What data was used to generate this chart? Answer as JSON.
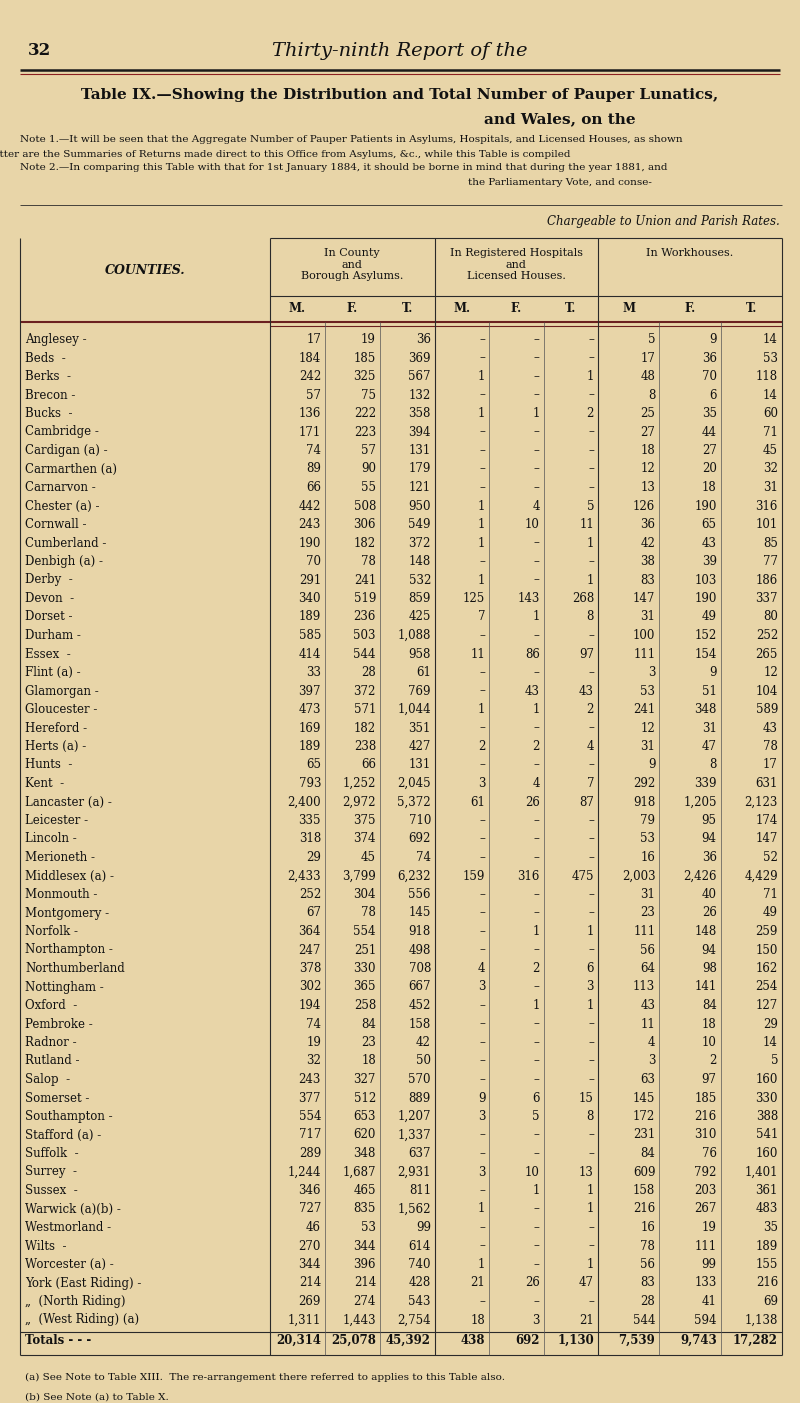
{
  "page_num": "32",
  "page_header": "Thirty-ninth Report of the",
  "title_line1": "Table IX.—Showing the Distribution and Total Number of Pauper Lunatics,",
  "title_line2": "and Wales, on the",
  "note1_line1": "Note 1.—It will be seen that the Aggregate Number of Pauper Patients in Asylums, Hospitals, and Licensed Houses, as shown",
  "note1_line2": "latter are the Summaries of Returns made direct to this Office from Asylums, &c., while this Table is compiled",
  "note2_line1": "Note 2.—In comparing this Table with that for 1st January 1884, it should be borne in mind that during the year 1881, and",
  "note2_line2": "the Parliamentary Vote, and conse-",
  "chargeable_header": "Chargeable to Union and Parish Rates.",
  "col_group1": "In County\nand\nBorough Asylums.",
  "col_group2": "In Registered Hospitals\nand\nLicensed Houses.",
  "col_group3": "In Workhouses.",
  "sub_headers": [
    "M.",
    "F.",
    "T.",
    "M.",
    "F.",
    "T.",
    "M",
    "F.",
    "T."
  ],
  "counties_header": "COUNTIES.",
  "rows": [
    [
      "Anglesey -",
      17,
      19,
      36,
      "-",
      "-",
      "-",
      5,
      9,
      14
    ],
    [
      "Beds  -",
      184,
      185,
      369,
      "-",
      "-",
      "-",
      17,
      36,
      53
    ],
    [
      "Berks  -",
      242,
      325,
      567,
      1,
      "-",
      1,
      48,
      70,
      118
    ],
    [
      "Brecon -",
      57,
      75,
      132,
      "-",
      "-",
      "-",
      8,
      6,
      14
    ],
    [
      "Bucks  -",
      136,
      222,
      358,
      1,
      1,
      2,
      25,
      35,
      60
    ],
    [
      "Cambridge -",
      171,
      223,
      394,
      "-",
      "-",
      "-",
      27,
      44,
      71
    ],
    [
      "Cardigan (a) -",
      74,
      57,
      131,
      "-",
      "-",
      "-",
      18,
      27,
      45
    ],
    [
      "Carmarthen (a)",
      89,
      90,
      179,
      "-",
      "-",
      "-",
      12,
      20,
      32
    ],
    [
      "Carnarvon -",
      66,
      55,
      121,
      "-",
      "-",
      "-",
      13,
      18,
      31
    ],
    [
      "Chester (a) -",
      442,
      508,
      950,
      1,
      4,
      5,
      126,
      190,
      316
    ],
    [
      "Cornwall -",
      243,
      306,
      549,
      1,
      10,
      11,
      36,
      65,
      101
    ],
    [
      "Cumberland -",
      190,
      182,
      372,
      1,
      "-",
      1,
      42,
      43,
      85
    ],
    [
      "Denbigh (a) -",
      70,
      78,
      148,
      "-",
      "-",
      "-",
      38,
      39,
      77
    ],
    [
      "Derby  -",
      291,
      241,
      532,
      1,
      "-",
      1,
      83,
      103,
      186
    ],
    [
      "Devon  -",
      340,
      519,
      859,
      125,
      143,
      268,
      147,
      190,
      337
    ],
    [
      "Dorset -",
      189,
      236,
      425,
      7,
      1,
      8,
      31,
      49,
      80
    ],
    [
      "Durham -",
      585,
      503,
      1088,
      "-",
      "-",
      "-",
      100,
      152,
      252
    ],
    [
      "Essex  -",
      414,
      544,
      958,
      11,
      86,
      97,
      111,
      154,
      265
    ],
    [
      "Flint (a) -",
      33,
      28,
      61,
      "-",
      "-",
      "-",
      3,
      9,
      12
    ],
    [
      "Glamorgan -",
      397,
      372,
      769,
      "-",
      43,
      43,
      53,
      51,
      104
    ],
    [
      "Gloucester -",
      473,
      571,
      1044,
      1,
      1,
      2,
      241,
      348,
      589
    ],
    [
      "Hereford -",
      169,
      182,
      351,
      "-",
      "-",
      "-",
      12,
      31,
      43
    ],
    [
      "Herts (a) -",
      189,
      238,
      427,
      2,
      2,
      4,
      31,
      47,
      78
    ],
    [
      "Hunts  -",
      65,
      66,
      131,
      "-",
      "-",
      "-",
      9,
      8,
      17
    ],
    [
      "Kent  -",
      793,
      1252,
      2045,
      3,
      4,
      7,
      292,
      339,
      631
    ],
    [
      "Lancaster (a) -",
      2400,
      2972,
      5372,
      61,
      26,
      87,
      918,
      1205,
      2123
    ],
    [
      "Leicester -",
      335,
      375,
      710,
      "-",
      "-",
      "-",
      79,
      95,
      174
    ],
    [
      "Lincoln -",
      318,
      374,
      692,
      "-",
      "-",
      "-",
      53,
      94,
      147
    ],
    [
      "Merioneth -",
      29,
      45,
      74,
      "-",
      "-",
      "-",
      16,
      36,
      52
    ],
    [
      "Middlesex (a) -",
      2433,
      3799,
      6232,
      159,
      316,
      475,
      2003,
      2426,
      4429
    ],
    [
      "Monmouth -",
      252,
      304,
      556,
      "-",
      "-",
      "-",
      31,
      40,
      71
    ],
    [
      "Montgomery -",
      67,
      78,
      145,
      "-",
      "-",
      "-",
      23,
      26,
      49
    ],
    [
      "Norfolk -",
      364,
      554,
      918,
      "-",
      1,
      1,
      111,
      148,
      259
    ],
    [
      "Northampton -",
      247,
      251,
      498,
      "-",
      "-",
      "-",
      56,
      94,
      150
    ],
    [
      "Northumberland",
      378,
      330,
      708,
      4,
      2,
      6,
      64,
      98,
      162
    ],
    [
      "Nottingham -",
      302,
      365,
      667,
      3,
      "-",
      3,
      113,
      141,
      254
    ],
    [
      "Oxford  -",
      194,
      258,
      452,
      "-",
      1,
      1,
      43,
      84,
      127
    ],
    [
      "Pembroke -",
      74,
      84,
      158,
      "-",
      "-",
      "-",
      11,
      18,
      29
    ],
    [
      "Radnor -",
      19,
      23,
      42,
      "-",
      "-",
      "-",
      4,
      10,
      14
    ],
    [
      "Rutland -",
      32,
      18,
      50,
      "-",
      "-",
      "-",
      3,
      2,
      5
    ],
    [
      "Salop  -",
      243,
      327,
      570,
      "-",
      "-",
      "-",
      63,
      97,
      160
    ],
    [
      "Somerset -",
      377,
      512,
      889,
      9,
      6,
      15,
      145,
      185,
      330
    ],
    [
      "Southampton -",
      554,
      653,
      1207,
      3,
      5,
      8,
      172,
      216,
      388
    ],
    [
      "Stafford (a) -",
      717,
      620,
      1337,
      "-",
      "-",
      "-",
      231,
      310,
      541
    ],
    [
      "Suffolk  -",
      289,
      348,
      637,
      "-",
      "-",
      "-",
      84,
      76,
      160
    ],
    [
      "Surrey  -",
      1244,
      1687,
      2931,
      3,
      10,
      13,
      609,
      792,
      1401
    ],
    [
      "Sussex  -",
      346,
      465,
      811,
      "-",
      1,
      1,
      158,
      203,
      361
    ],
    [
      "Warwick (a)(b) -",
      727,
      835,
      1562,
      1,
      "-",
      1,
      216,
      267,
      483
    ],
    [
      "Westmorland -",
      46,
      53,
      99,
      "-",
      "-",
      "-",
      16,
      19,
      35
    ],
    [
      "Wilts  -",
      270,
      344,
      614,
      "-",
      "-",
      "-",
      78,
      111,
      189
    ],
    [
      "Worcester (a) -",
      344,
      396,
      740,
      1,
      "-",
      1,
      56,
      99,
      155
    ],
    [
      "York (East Riding) -",
      214,
      214,
      428,
      21,
      26,
      47,
      83,
      133,
      216
    ],
    [
      "„  (North Riding)",
      269,
      274,
      543,
      "-",
      "-",
      "-",
      28,
      41,
      69
    ],
    [
      "„  (West Riding) (a)",
      1311,
      1443,
      2754,
      18,
      3,
      21,
      544,
      594,
      1138
    ]
  ],
  "totals": [
    "Totals - - -",
    20314,
    25078,
    45392,
    438,
    692,
    1130,
    7539,
    9743,
    17282
  ],
  "footnote1": "(a) See Note to Table XIII.  The re-arrangement there referred to applies to this Table also.",
  "footnote2": "(b) See Note (a) to Table X.",
  "bg_color": "#e8d5a8",
  "text_color": "#111111",
  "line_color": "#2a2a2a",
  "red_line_color": "#6b2020"
}
